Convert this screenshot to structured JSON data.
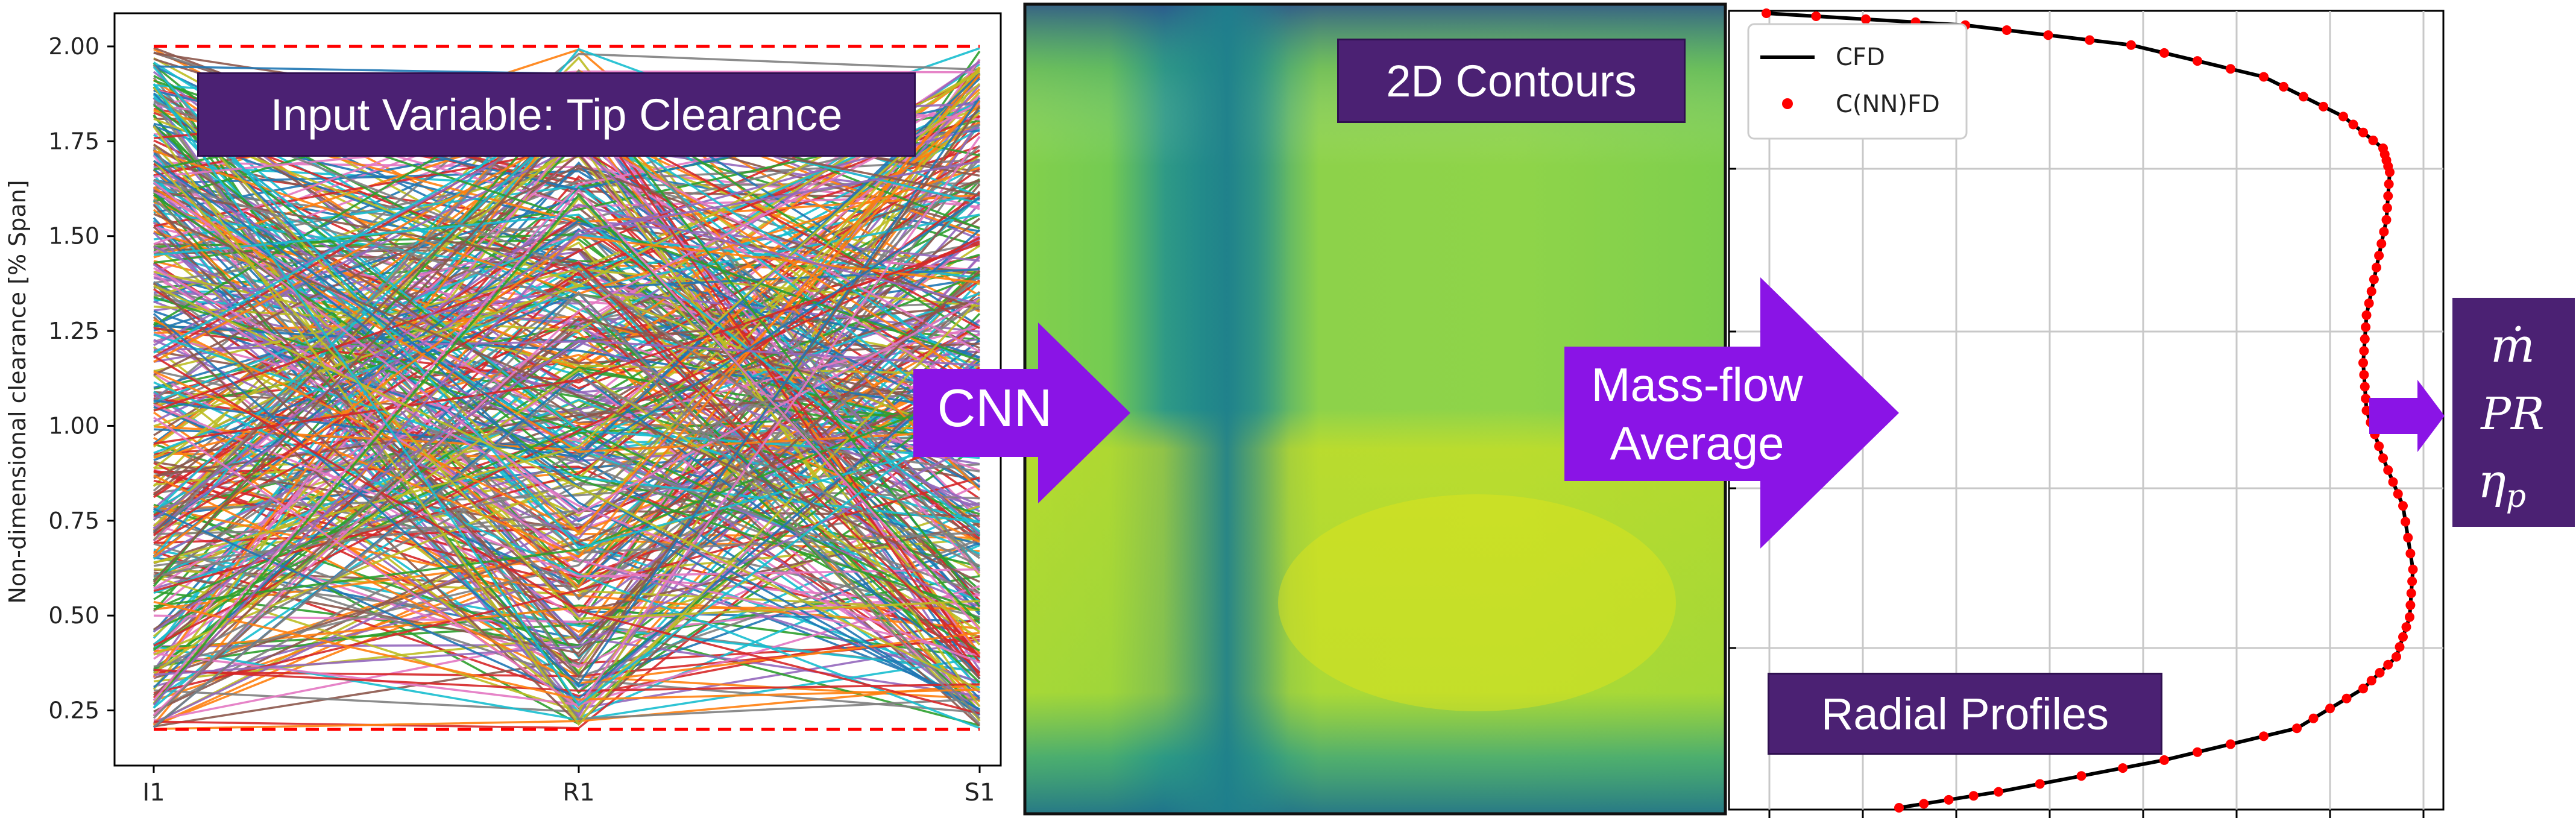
{
  "left_panel": {
    "title": "Input Variable: Tip Clearance",
    "ylabel": "Non-dimensional clearance [% Span]",
    "yticks": [
      "0.25",
      "0.50",
      "0.75",
      "1.00",
      "1.25",
      "1.50",
      "1.75",
      "2.00"
    ],
    "xticks": [
      "I1",
      "R1",
      "S1"
    ]
  },
  "middle_panel": {
    "title": "2D Contours"
  },
  "right_panel": {
    "title": "Radial Profiles",
    "legend": [
      "CFD",
      "C(NN)FD"
    ]
  },
  "arrows": {
    "cnn": "CNN",
    "massflow_line1": "Mass-flow",
    "massflow_line2": "Average"
  },
  "outputs": {
    "mdot": "ṁ",
    "pr": "PR",
    "eta": "η",
    "eta_sub": "p"
  },
  "colors": {
    "label_bg": "#4b2173",
    "arrow": "#8a14e6",
    "reference_line": "#ff0000",
    "cfd_line": "#000000",
    "nn_points": "#ff0000"
  },
  "chart_data": [
    {
      "type": "line",
      "title": "Input Variable: Tip Clearance",
      "categories": [
        "I1",
        "R1",
        "S1"
      ],
      "ylabel": "Non-dimensional clearance [% Span]",
      "ylim": [
        0.2,
        2.05
      ],
      "reference_lines": [
        0.2,
        2.0
      ],
      "note_series_count": "hundreds of random samples each spanning 0.2–2.0 at I1, R1, S1",
      "series": []
    },
    {
      "type": "line",
      "title": "Radial Profiles",
      "legend": [
        "CFD",
        "C(NN)FD"
      ],
      "legend_position": "top-left",
      "grid": true,
      "series": [
        {
          "name": "CFD",
          "x": [
            0.0,
            0.3,
            0.55,
            0.75,
            0.87,
            0.93,
            0.94,
            0.935,
            0.92,
            0.905,
            0.9,
            0.905,
            0.93,
            0.96,
            0.975,
            0.97,
            0.95,
            0.9,
            0.8,
            0.6,
            0.35,
            0.2
          ],
          "y": [
            1.0,
            0.985,
            0.96,
            0.92,
            0.87,
            0.83,
            0.8,
            0.74,
            0.68,
            0.62,
            0.56,
            0.5,
            0.44,
            0.38,
            0.3,
            0.24,
            0.19,
            0.15,
            0.1,
            0.06,
            0.02,
            0.0
          ]
        },
        {
          "name": "C(NN)FD",
          "x": [
            0.0,
            0.3,
            0.55,
            0.75,
            0.87,
            0.93,
            0.94,
            0.935,
            0.92,
            0.905,
            0.9,
            0.905,
            0.93,
            0.96,
            0.975,
            0.97,
            0.95,
            0.9,
            0.8,
            0.6,
            0.35,
            0.2
          ],
          "y": [
            1.0,
            0.985,
            0.96,
            0.92,
            0.87,
            0.83,
            0.8,
            0.74,
            0.68,
            0.62,
            0.56,
            0.5,
            0.44,
            0.38,
            0.3,
            0.24,
            0.19,
            0.15,
            0.1,
            0.06,
            0.02,
            0.0
          ]
        }
      ]
    }
  ]
}
